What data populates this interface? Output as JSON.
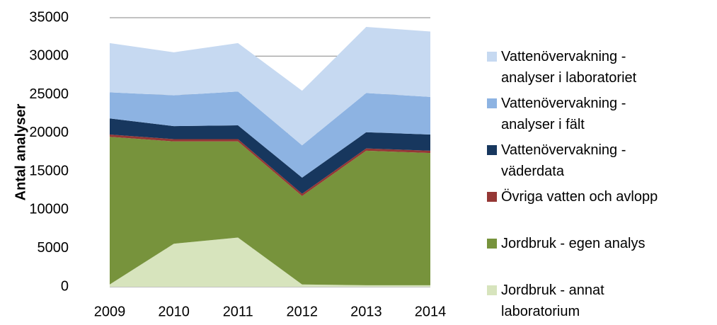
{
  "chart_data": {
    "type": "stacked-area",
    "y_label": "Antal analyser",
    "categories": [
      "2009",
      "2010",
      "2011",
      "2012",
      "2013",
      "2014"
    ],
    "ylim": [
      0,
      35000
    ],
    "yticks": [
      0,
      5000,
      10000,
      15000,
      20000,
      25000,
      30000,
      35000
    ],
    "grid": true,
    "series": [
      {
        "name": "Jordbruk - annat laboratorium",
        "color": "#d7e4bd",
        "values": [
          300,
          5600,
          6400,
          300,
          200,
          200
        ]
      },
      {
        "name": "Jordbruk - egen analys",
        "color": "#77933c",
        "values": [
          19200,
          13300,
          12500,
          11500,
          17500,
          17200
        ]
      },
      {
        "name": "Övriga vatten och avlopp",
        "color": "#953735",
        "values": [
          300,
          300,
          300,
          300,
          300,
          300
        ]
      },
      {
        "name": "Vattenövervakning - väderdata",
        "color": "#17375e",
        "values": [
          2100,
          1700,
          1800,
          2100,
          2100,
          2100
        ]
      },
      {
        "name": "Vattenövervakning - analyser i fält",
        "color": "#8db3e2",
        "values": [
          3400,
          4000,
          4400,
          4200,
          5100,
          4900
        ]
      },
      {
        "name": "Vattenövervakning - analyser i laboratoriet",
        "color": "#c6d9f1",
        "values": [
          6400,
          5600,
          6300,
          7100,
          8600,
          8500
        ]
      }
    ]
  }
}
